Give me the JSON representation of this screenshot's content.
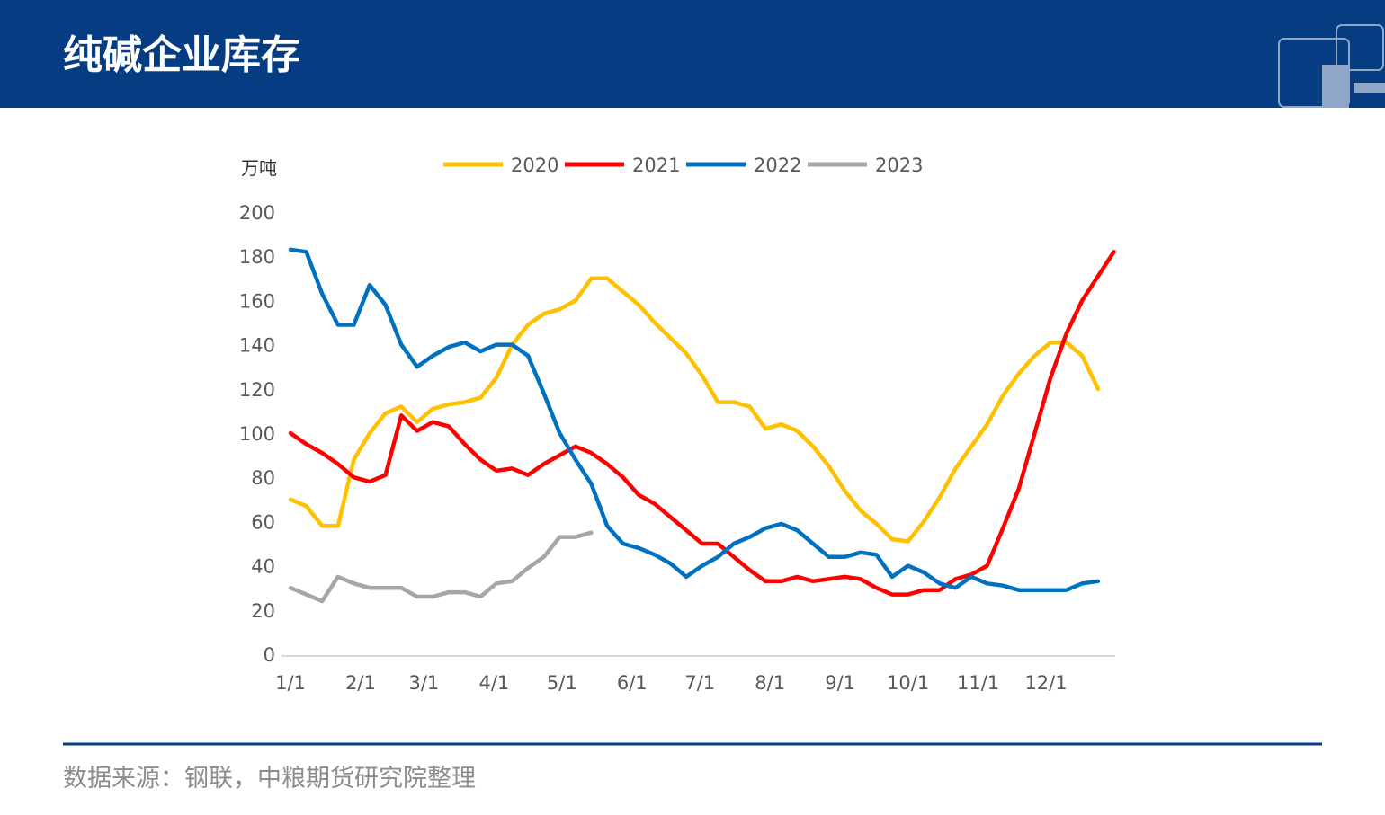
{
  "header": {
    "title": "纯碱企业库存"
  },
  "chart_data": {
    "type": "line",
    "y_label": "万吨",
    "x": [
      0,
      7,
      14,
      21,
      28,
      35,
      42,
      49,
      56,
      63,
      70,
      77,
      84,
      91,
      98,
      105,
      112,
      119,
      126,
      133,
      140,
      147,
      154,
      161,
      168,
      175,
      182,
      189,
      196,
      203,
      210,
      217,
      224,
      231,
      238,
      245,
      252,
      259,
      266,
      273,
      280,
      287,
      294,
      301,
      308,
      315,
      322,
      329,
      336,
      343,
      350,
      357,
      364
    ],
    "xlim": [
      0,
      365
    ],
    "xticks": [
      {
        "value": 0,
        "label": "1/1"
      },
      {
        "value": 31,
        "label": "2/1"
      },
      {
        "value": 59,
        "label": "3/1"
      },
      {
        "value": 90,
        "label": "4/1"
      },
      {
        "value": 120,
        "label": "5/1"
      },
      {
        "value": 151,
        "label": "6/1"
      },
      {
        "value": 181,
        "label": "7/1"
      },
      {
        "value": 212,
        "label": "8/1"
      },
      {
        "value": 243,
        "label": "9/1"
      },
      {
        "value": 273,
        "label": "10/1"
      },
      {
        "value": 304,
        "label": "11/1"
      },
      {
        "value": 334,
        "label": "12/1"
      }
    ],
    "ylim": [
      0,
      200
    ],
    "yticks": [
      0,
      20,
      40,
      60,
      80,
      100,
      120,
      140,
      160,
      180,
      200
    ],
    "grid": false,
    "series": [
      {
        "name": "2020",
        "color": "#ffc000",
        "values": [
          70,
          67,
          58,
          58,
          88,
          100,
          109,
          112,
          105,
          111,
          113,
          114,
          116,
          125,
          140,
          149,
          154,
          156,
          160,
          170,
          170,
          164,
          158,
          150,
          143,
          136,
          126,
          114,
          114,
          112,
          102,
          104,
          101,
          94,
          85,
          74,
          65,
          59,
          52,
          51,
          60,
          71,
          84,
          94,
          104,
          117,
          127,
          135,
          141,
          141,
          135,
          120,
          null
        ]
      },
      {
        "name": "2021",
        "color": "#ff0000",
        "values": [
          100,
          95,
          91,
          86,
          80,
          78,
          81,
          108,
          101,
          105,
          103,
          95,
          88,
          83,
          84,
          81,
          86,
          90,
          94,
          91,
          86,
          80,
          72,
          68,
          62,
          56,
          50,
          50,
          44,
          38,
          33,
          33,
          35,
          33,
          34,
          35,
          34,
          30,
          27,
          27,
          29,
          29,
          34,
          36,
          40,
          57,
          75,
          100,
          125,
          145,
          160,
          171,
          182
        ]
      },
      {
        "name": "2022",
        "color": "#0070c0",
        "values": [
          183,
          182,
          163,
          149,
          149,
          167,
          158,
          140,
          130,
          135,
          139,
          141,
          137,
          140,
          140,
          135,
          118,
          100,
          88,
          77,
          58,
          50,
          48,
          45,
          41,
          35,
          40,
          44,
          50,
          53,
          57,
          59,
          56,
          50,
          44,
          44,
          46,
          45,
          35,
          40,
          37,
          32,
          30,
          35,
          32,
          31,
          29,
          29,
          29,
          29,
          32,
          33,
          null
        ]
      },
      {
        "name": "2023",
        "color": "#a6a6a6",
        "values": [
          30,
          27,
          24,
          35,
          32,
          30,
          30,
          30,
          26,
          26,
          28,
          28,
          26,
          32,
          33,
          39,
          44,
          53,
          53,
          55,
          null,
          null,
          null,
          null,
          null,
          null,
          null,
          null,
          null,
          null,
          null,
          null,
          null,
          null,
          null,
          null,
          null,
          null,
          null,
          null,
          null,
          null,
          null,
          null,
          null,
          null,
          null,
          null,
          null,
          null,
          null,
          null,
          null
        ]
      }
    ]
  },
  "footer": {
    "source": "数据来源：钢联，中粮期货研究院整理"
  }
}
